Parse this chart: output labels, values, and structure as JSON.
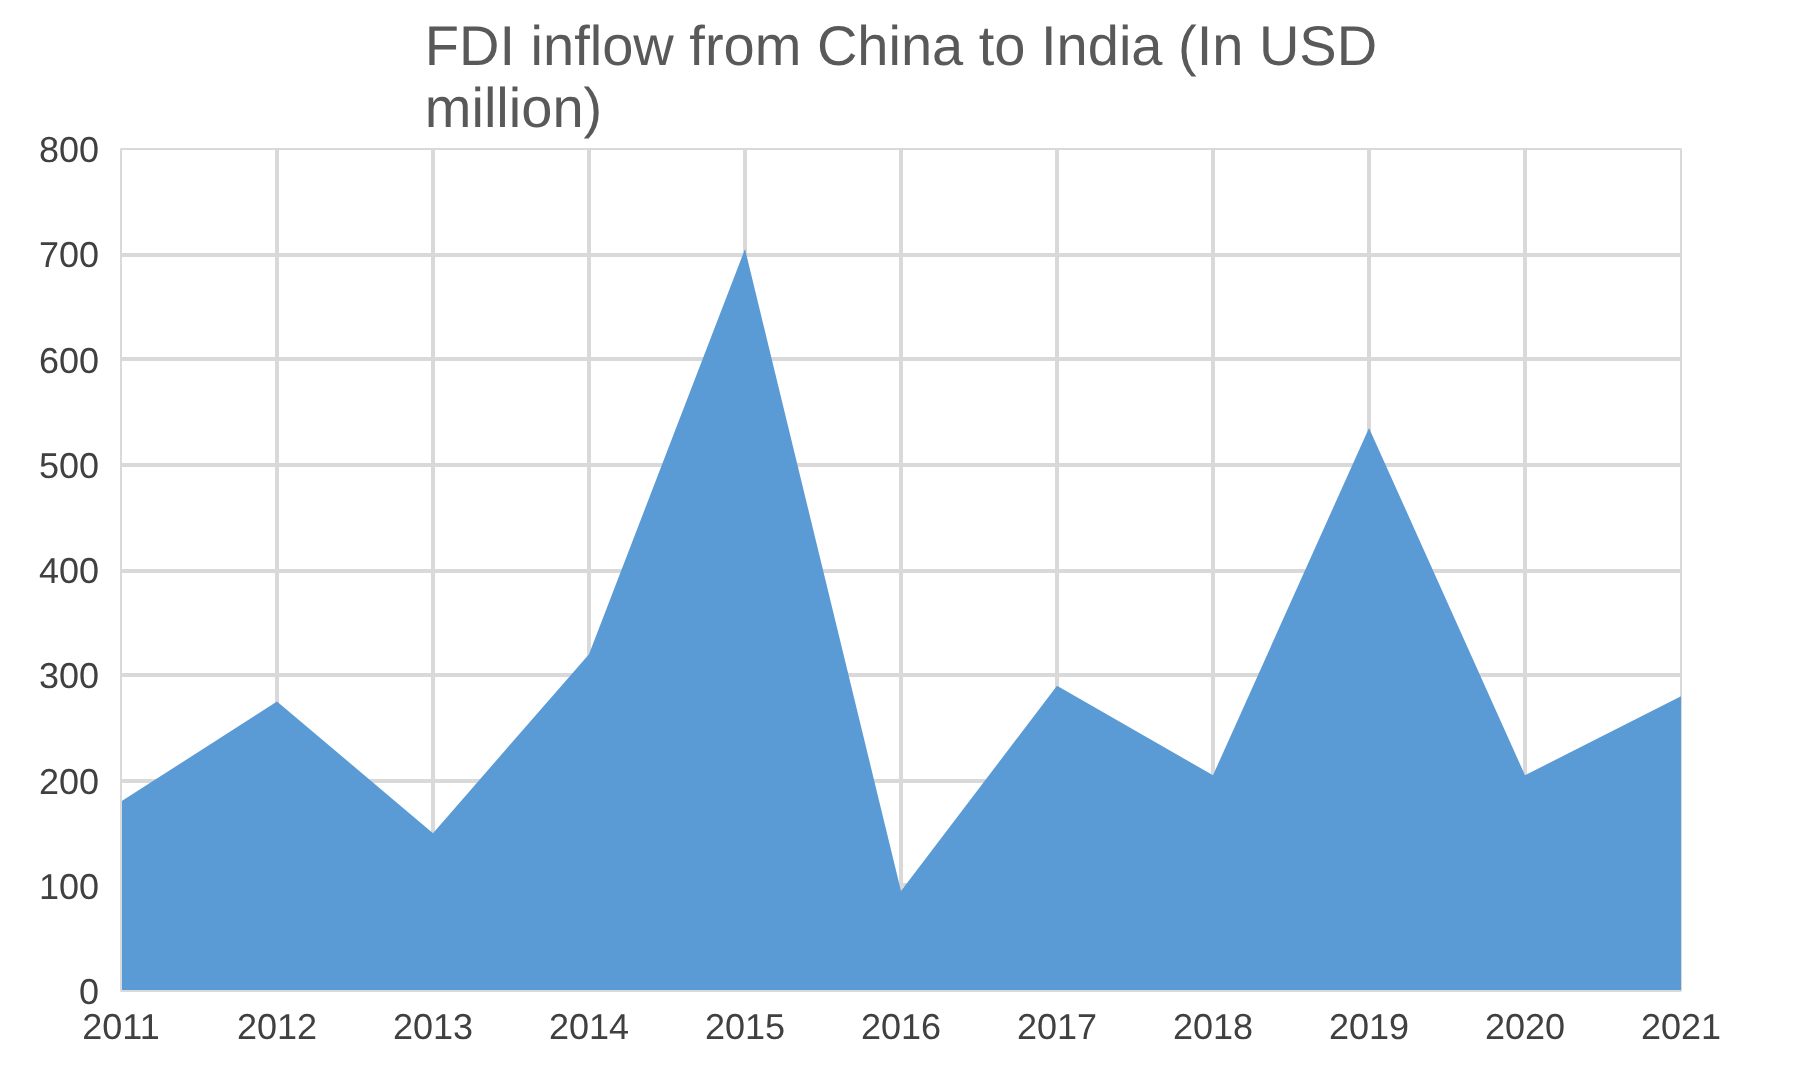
{
  "chart_data": {
    "type": "area",
    "title": "FDI inflow from China to India (In USD million)",
    "categories": [
      "2011",
      "2012",
      "2013",
      "2014",
      "2015",
      "2016",
      "2017",
      "2018",
      "2019",
      "2020",
      "2021"
    ],
    "series": [
      {
        "color": "#5b9bd5",
        "values": [
          180,
          275,
          150,
          320,
          705,
          95,
          290,
          205,
          535,
          205,
          280
        ]
      }
    ],
    "ylim": [
      0,
      800
    ],
    "yticks": [
      0,
      100,
      200,
      300,
      400,
      500,
      600,
      700,
      800
    ],
    "grid": true
  }
}
